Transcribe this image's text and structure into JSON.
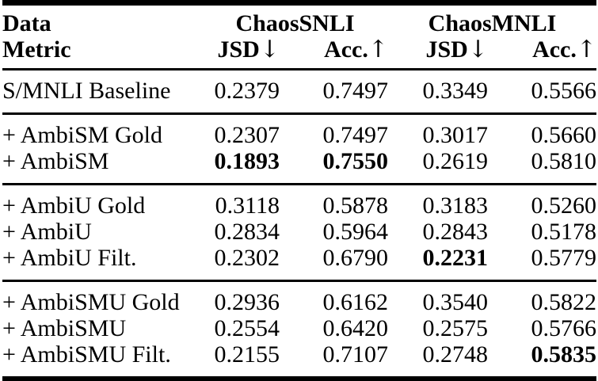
{
  "page": {
    "background_color": "#ffffff",
    "text_color": "#000000",
    "rule_color": "#000000"
  },
  "table": {
    "header": {
      "row1_col1": "Data",
      "row2_col1": "Metric",
      "groups": [
        {
          "label": "ChaosSNLI"
        },
        {
          "label": "ChaosMNLI"
        }
      ],
      "metrics": [
        {
          "name": "JSD",
          "arrow": "↓"
        },
        {
          "name": "Acc.",
          "arrow": "↑"
        },
        {
          "name": "JSD",
          "arrow": "↓"
        },
        {
          "name": "Acc.",
          "arrow": "↑"
        }
      ]
    },
    "sections": [
      {
        "rows": [
          {
            "label": "S/MNLI Baseline",
            "values": [
              "0.2379",
              "0.7497",
              "0.3349",
              "0.5566"
            ],
            "bold": [
              false,
              false,
              false,
              false
            ]
          }
        ]
      },
      {
        "rows": [
          {
            "label": "+ AmbiSM Gold",
            "values": [
              "0.2307",
              "0.7497",
              "0.3017",
              "0.5660"
            ],
            "bold": [
              false,
              false,
              false,
              false
            ]
          },
          {
            "label": "+ AmbiSM",
            "values": [
              "0.1893",
              "0.7550",
              "0.2619",
              "0.5810"
            ],
            "bold": [
              true,
              true,
              false,
              false
            ]
          }
        ]
      },
      {
        "rows": [
          {
            "label": "+ AmbiU Gold",
            "values": [
              "0.3118",
              "0.5878",
              "0.3183",
              "0.5260"
            ],
            "bold": [
              false,
              false,
              false,
              false
            ]
          },
          {
            "label": "+ AmbiU",
            "values": [
              "0.2834",
              "0.5964",
              "0.2843",
              "0.5178"
            ],
            "bold": [
              false,
              false,
              false,
              false
            ]
          },
          {
            "label": "+ AmbiU Filt.",
            "values": [
              "0.2302",
              "0.6790",
              "0.2231",
              "0.5779"
            ],
            "bold": [
              false,
              false,
              true,
              false
            ]
          }
        ]
      },
      {
        "rows": [
          {
            "label": "+ AmbiSMU Gold",
            "values": [
              "0.2936",
              "0.6162",
              "0.3540",
              "0.5822"
            ],
            "bold": [
              false,
              false,
              false,
              false
            ]
          },
          {
            "label": "+ AmbiSMU",
            "values": [
              "0.2554",
              "0.6420",
              "0.2575",
              "0.5766"
            ],
            "bold": [
              false,
              false,
              false,
              false
            ]
          },
          {
            "label": "+ AmbiSMU Filt.",
            "values": [
              "0.2155",
              "0.7107",
              "0.2748",
              "0.5835"
            ],
            "bold": [
              false,
              false,
              false,
              true
            ]
          }
        ]
      }
    ]
  }
}
